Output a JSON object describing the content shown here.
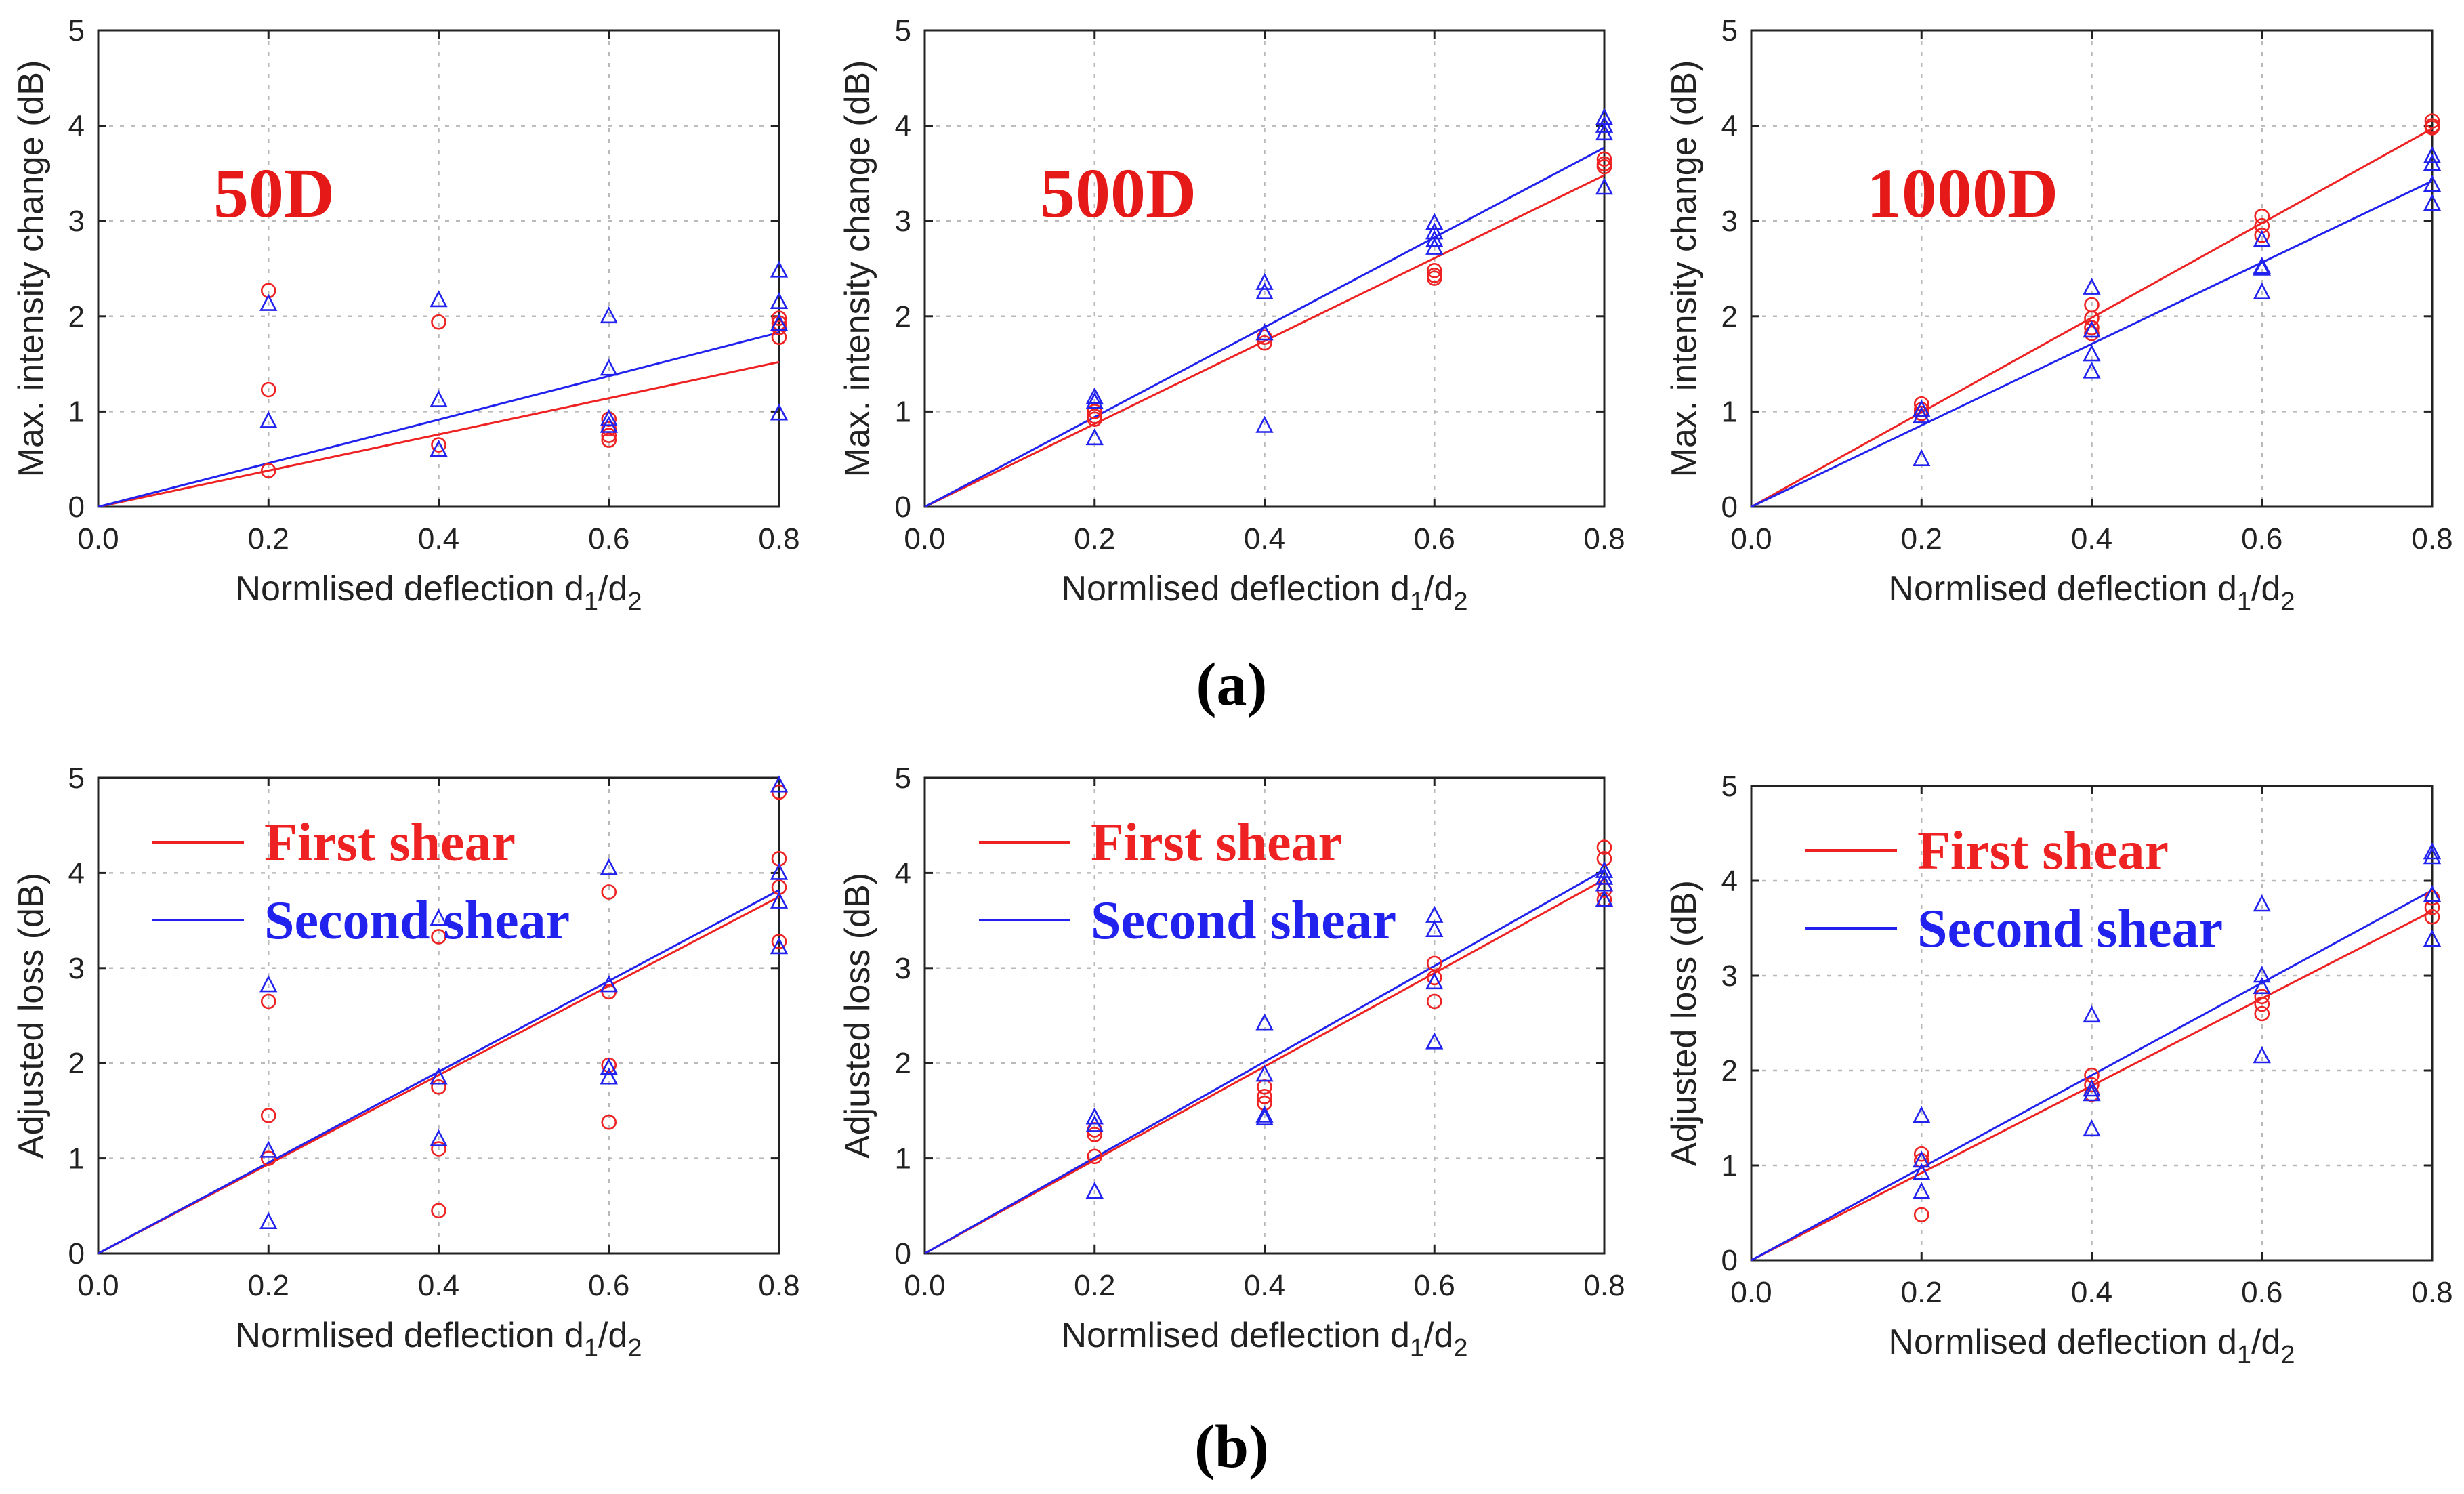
{
  "figure_labels": {
    "a": "(a)",
    "b": "(b)"
  },
  "colors": {
    "first": "#ee2222",
    "second": "#2222ee",
    "title": "#e61919"
  },
  "chart_data": [
    {
      "type": "scatter",
      "panel": "a1",
      "label": "50D",
      "xlabel": "Normlised deflection",
      "xlabel_var": "d",
      "xlabel_sub1": "1",
      "xlabel_slash": "/",
      "xlabel_sub2": "2",
      "ylabel": "Max. intensity change (dB)",
      "xlim": [
        0,
        0.8
      ],
      "ylim": [
        0,
        5
      ],
      "xticks": [
        "0.0",
        "0.2",
        "0.4",
        "0.6",
        "0.8"
      ],
      "yticks": [
        "0",
        "1",
        "2",
        "3",
        "4",
        "5"
      ],
      "series": [
        {
          "name": "First shear",
          "marker": "circle",
          "fit": [
            [
              0,
              0
            ],
            [
              0.8,
              1.52
            ]
          ],
          "points": [
            [
              0.2,
              2.27
            ],
            [
              0.2,
              1.23
            ],
            [
              0.2,
              0.38
            ],
            [
              0.4,
              1.94
            ],
            [
              0.4,
              0.65
            ],
            [
              0.6,
              0.92
            ],
            [
              0.6,
              0.82
            ],
            [
              0.6,
              0.75
            ],
            [
              0.6,
              0.7
            ],
            [
              0.8,
              1.98
            ],
            [
              0.8,
              1.93
            ],
            [
              0.8,
              1.88
            ],
            [
              0.8,
              1.78
            ]
          ]
        },
        {
          "name": "Second shear",
          "marker": "triangle",
          "fit": [
            [
              0,
              0
            ],
            [
              0.8,
              1.83
            ]
          ],
          "points": [
            [
              0.2,
              2.13
            ],
            [
              0.2,
              0.9
            ],
            [
              0.4,
              2.17
            ],
            [
              0.4,
              1.12
            ],
            [
              0.4,
              0.6
            ],
            [
              0.6,
              2.0
            ],
            [
              0.6,
              1.45
            ],
            [
              0.6,
              0.92
            ],
            [
              0.6,
              0.85
            ],
            [
              0.8,
              2.48
            ],
            [
              0.8,
              2.15
            ],
            [
              0.8,
              1.92
            ],
            [
              0.8,
              0.98
            ]
          ]
        }
      ]
    },
    {
      "type": "scatter",
      "panel": "a2",
      "label": "500D",
      "xlabel": "Normlised deflection",
      "xlabel_var": "d",
      "xlabel_sub1": "1",
      "xlabel_slash": "/",
      "xlabel_sub2": "2",
      "ylabel": "Max. intensity change (dB)",
      "xlim": [
        0,
        0.8
      ],
      "ylim": [
        0,
        5
      ],
      "xticks": [
        "0.0",
        "0.2",
        "0.4",
        "0.6",
        "0.8"
      ],
      "yticks": [
        "0",
        "1",
        "2",
        "3",
        "4",
        "5"
      ],
      "series": [
        {
          "name": "First shear",
          "marker": "circle",
          "fit": [
            [
              0,
              0
            ],
            [
              0.8,
              3.48
            ]
          ],
          "points": [
            [
              0.2,
              1.0
            ],
            [
              0.2,
              0.95
            ],
            [
              0.2,
              0.92
            ],
            [
              0.4,
              1.78
            ],
            [
              0.4,
              1.72
            ],
            [
              0.6,
              2.48
            ],
            [
              0.6,
              2.43
            ],
            [
              0.6,
              2.4
            ],
            [
              0.8,
              3.65
            ],
            [
              0.8,
              3.6
            ],
            [
              0.8,
              3.57
            ]
          ]
        },
        {
          "name": "Second shear",
          "marker": "triangle",
          "fit": [
            [
              0,
              0
            ],
            [
              0.8,
              3.77
            ]
          ],
          "points": [
            [
              0.2,
              1.15
            ],
            [
              0.2,
              1.1
            ],
            [
              0.2,
              0.72
            ],
            [
              0.4,
              2.35
            ],
            [
              0.4,
              2.25
            ],
            [
              0.4,
              1.82
            ],
            [
              0.4,
              0.85
            ],
            [
              0.6,
              2.98
            ],
            [
              0.6,
              2.88
            ],
            [
              0.6,
              2.8
            ],
            [
              0.6,
              2.72
            ],
            [
              0.8,
              4.08
            ],
            [
              0.8,
              4.0
            ],
            [
              0.8,
              3.92
            ],
            [
              0.8,
              3.35
            ]
          ]
        }
      ]
    },
    {
      "type": "scatter",
      "panel": "a3",
      "label": "1000D",
      "xlabel": "Normlised deflection",
      "xlabel_var": "d",
      "xlabel_sub1": "1",
      "xlabel_slash": "/",
      "xlabel_sub2": "2",
      "ylabel": "Max. intensity change (dB)",
      "xlim": [
        0,
        0.8
      ],
      "ylim": [
        0,
        5
      ],
      "xticks": [
        "0.0",
        "0.2",
        "0.4",
        "0.6",
        "0.8"
      ],
      "yticks": [
        "0",
        "1",
        "2",
        "3",
        "4",
        "5"
      ],
      "series": [
        {
          "name": "First shear",
          "marker": "circle",
          "fit": [
            [
              0,
              0
            ],
            [
              0.8,
              3.97
            ]
          ],
          "points": [
            [
              0.2,
              1.08
            ],
            [
              0.2,
              1.02
            ],
            [
              0.2,
              0.98
            ],
            [
              0.4,
              2.12
            ],
            [
              0.4,
              1.98
            ],
            [
              0.4,
              1.88
            ],
            [
              0.4,
              1.82
            ],
            [
              0.6,
              3.05
            ],
            [
              0.6,
              2.95
            ],
            [
              0.6,
              2.85
            ],
            [
              0.8,
              4.05
            ],
            [
              0.8,
              4.0
            ],
            [
              0.8,
              3.98
            ]
          ]
        },
        {
          "name": "Second shear",
          "marker": "triangle",
          "fit": [
            [
              0,
              0
            ],
            [
              0.8,
              3.42
            ]
          ],
          "points": [
            [
              0.2,
              1.02
            ],
            [
              0.2,
              0.95
            ],
            [
              0.2,
              0.5
            ],
            [
              0.4,
              2.3
            ],
            [
              0.4,
              1.85
            ],
            [
              0.4,
              1.6
            ],
            [
              0.4,
              1.42
            ],
            [
              0.6,
              2.8
            ],
            [
              0.6,
              2.52
            ],
            [
              0.6,
              2.5
            ],
            [
              0.6,
              2.25
            ],
            [
              0.8,
              3.68
            ],
            [
              0.8,
              3.6
            ],
            [
              0.8,
              3.38
            ],
            [
              0.8,
              3.18
            ]
          ]
        }
      ]
    },
    {
      "type": "scatter",
      "panel": "b1",
      "xlabel": "Normlised deflection",
      "xlabel_var": "d",
      "xlabel_sub1": "1",
      "xlabel_slash": "/",
      "xlabel_sub2": "2",
      "ylabel": "Adjusted loss (dB)",
      "xlim": [
        0,
        0.8
      ],
      "ylim": [
        0,
        5
      ],
      "xticks": [
        "0.0",
        "0.2",
        "0.4",
        "0.6",
        "0.8"
      ],
      "yticks": [
        "0",
        "1",
        "2",
        "3",
        "4",
        "5"
      ],
      "legend": [
        "First shear",
        "Second shear"
      ],
      "series": [
        {
          "name": "First shear",
          "marker": "circle",
          "fit": [
            [
              0,
              0
            ],
            [
              0.8,
              3.75
            ]
          ],
          "points": [
            [
              0.2,
              2.65
            ],
            [
              0.2,
              1.45
            ],
            [
              0.2,
              1.0
            ],
            [
              0.4,
              3.33
            ],
            [
              0.4,
              1.75
            ],
            [
              0.4,
              1.1
            ],
            [
              0.4,
              0.45
            ],
            [
              0.6,
              3.8
            ],
            [
              0.6,
              2.75
            ],
            [
              0.6,
              1.98
            ],
            [
              0.6,
              1.38
            ],
            [
              0.8,
              4.85
            ],
            [
              0.8,
              4.15
            ],
            [
              0.8,
              3.85
            ],
            [
              0.8,
              3.28
            ]
          ]
        },
        {
          "name": "Second shear",
          "marker": "triangle",
          "fit": [
            [
              0,
              0
            ],
            [
              0.8,
              3.82
            ]
          ],
          "points": [
            [
              0.2,
              2.82
            ],
            [
              0.2,
              1.08
            ],
            [
              0.2,
              0.33
            ],
            [
              0.4,
              3.52
            ],
            [
              0.4,
              1.85
            ],
            [
              0.4,
              1.2
            ],
            [
              0.6,
              4.05
            ],
            [
              0.6,
              2.82
            ],
            [
              0.6,
              1.95
            ],
            [
              0.6,
              1.85
            ],
            [
              0.8,
              4.92
            ],
            [
              0.8,
              4.0
            ],
            [
              0.8,
              3.7
            ],
            [
              0.8,
              3.22
            ]
          ]
        }
      ]
    },
    {
      "type": "scatter",
      "panel": "b2",
      "xlabel": "Normlised deflection",
      "xlabel_var": "d",
      "xlabel_sub1": "1",
      "xlabel_slash": "/",
      "xlabel_sub2": "2",
      "ylabel": "Adjusted loss (dB)",
      "xlim": [
        0,
        0.8
      ],
      "ylim": [
        0,
        5
      ],
      "xticks": [
        "0.0",
        "0.2",
        "0.4",
        "0.6",
        "0.8"
      ],
      "yticks": [
        "0",
        "1",
        "2",
        "3",
        "4",
        "5"
      ],
      "legend": [
        "First shear",
        "Second shear"
      ],
      "series": [
        {
          "name": "First shear",
          "marker": "circle",
          "fit": [
            [
              0,
              0
            ],
            [
              0.8,
              3.93
            ]
          ],
          "points": [
            [
              0.2,
              1.3
            ],
            [
              0.2,
              1.25
            ],
            [
              0.2,
              1.02
            ],
            [
              0.4,
              1.75
            ],
            [
              0.4,
              1.65
            ],
            [
              0.4,
              1.58
            ],
            [
              0.6,
              3.05
            ],
            [
              0.6,
              2.9
            ],
            [
              0.6,
              2.65
            ],
            [
              0.8,
              4.27
            ],
            [
              0.8,
              4.15
            ],
            [
              0.8,
              3.82
            ],
            [
              0.8,
              3.72
            ]
          ]
        },
        {
          "name": "Second shear",
          "marker": "triangle",
          "fit": [
            [
              0,
              0
            ],
            [
              0.8,
              4.03
            ]
          ],
          "points": [
            [
              0.2,
              1.43
            ],
            [
              0.2,
              1.35
            ],
            [
              0.2,
              0.65
            ],
            [
              0.4,
              2.42
            ],
            [
              0.4,
              1.88
            ],
            [
              0.4,
              1.45
            ],
            [
              0.4,
              1.42
            ],
            [
              0.6,
              3.55
            ],
            [
              0.6,
              3.4
            ],
            [
              0.6,
              2.85
            ],
            [
              0.6,
              2.22
            ],
            [
              0.8,
              4.02
            ],
            [
              0.8,
              3.95
            ],
            [
              0.8,
              3.88
            ],
            [
              0.8,
              3.72
            ]
          ]
        }
      ]
    },
    {
      "type": "scatter",
      "panel": "b3",
      "xlabel": "Normlised deflection",
      "xlabel_var": "d",
      "xlabel_sub1": "1",
      "xlabel_slash": "/",
      "xlabel_sub2": "2",
      "ylabel": "Adjusted loss (dB)",
      "xlim": [
        0,
        0.8
      ],
      "ylim": [
        0,
        5
      ],
      "xticks": [
        "0.0",
        "0.2",
        "0.4",
        "0.6",
        "0.8"
      ],
      "yticks": [
        "0",
        "1",
        "2",
        "3",
        "4",
        "5"
      ],
      "legend": [
        "First shear",
        "Second shear"
      ],
      "series": [
        {
          "name": "First shear",
          "marker": "circle",
          "fit": [
            [
              0,
              0
            ],
            [
              0.8,
              3.68
            ]
          ],
          "points": [
            [
              0.2,
              1.12
            ],
            [
              0.2,
              1.05
            ],
            [
              0.2,
              0.48
            ],
            [
              0.4,
              1.95
            ],
            [
              0.4,
              1.85
            ],
            [
              0.4,
              1.75
            ],
            [
              0.6,
              2.78
            ],
            [
              0.6,
              2.7
            ],
            [
              0.6,
              2.6
            ],
            [
              0.8,
              3.82
            ],
            [
              0.8,
              3.72
            ],
            [
              0.8,
              3.62
            ]
          ]
        },
        {
          "name": "Second shear",
          "marker": "triangle",
          "fit": [
            [
              0,
              0
            ],
            [
              0.8,
              3.9
            ]
          ],
          "points": [
            [
              0.2,
              1.52
            ],
            [
              0.2,
              1.05
            ],
            [
              0.2,
              0.92
            ],
            [
              0.2,
              0.72
            ],
            [
              0.4,
              2.58
            ],
            [
              0.4,
              1.8
            ],
            [
              0.4,
              1.75
            ],
            [
              0.4,
              1.38
            ],
            [
              0.6,
              3.75
            ],
            [
              0.6,
              3.0
            ],
            [
              0.6,
              2.88
            ],
            [
              0.6,
              2.15
            ],
            [
              0.8,
              4.3
            ],
            [
              0.8,
              4.25
            ],
            [
              0.8,
              3.85
            ],
            [
              0.8,
              3.38
            ]
          ]
        }
      ]
    }
  ]
}
